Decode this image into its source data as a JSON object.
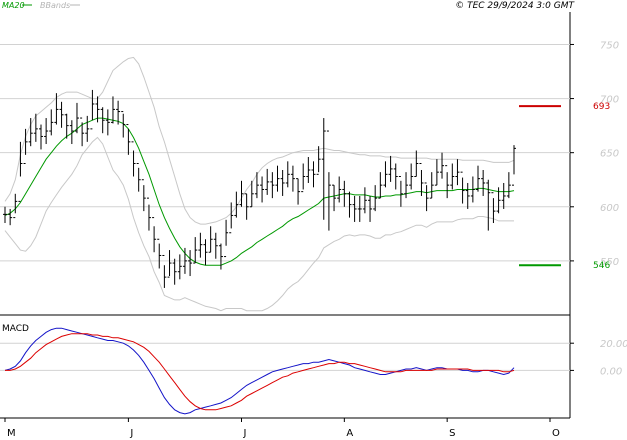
{
  "header": {
    "legend": [
      {
        "label": "MA20",
        "color": "#009900"
      },
      {
        "label": "BBands",
        "color": "#b4b4b4"
      }
    ],
    "copyright": "© TEC 29/9/2024 3:0 GMT"
  },
  "macd_panel": {
    "label": "MACD"
  },
  "colors": {
    "candle": "#000000",
    "ma20": "#009900",
    "bbands": "#c8c8c8",
    "grid": "#d2d2d2",
    "macd_line": "#1414c8",
    "signal_line": "#dc0000",
    "resistance": "#cc0000",
    "support": "#009900"
  },
  "chart_data": [
    {
      "type": "candlestick",
      "title": "",
      "x_ticks": [
        "M",
        "J",
        "J",
        "A",
        "S",
        "O"
      ],
      "y_ticks": [
        550,
        600,
        650,
        700,
        750
      ],
      "ylim": [
        500,
        780
      ],
      "grid": true,
      "ohlc_series": {
        "close": [
          593,
          590,
          605,
          640,
          660,
          668,
          672,
          665,
          670,
          678,
          690,
          685,
          675,
          670,
          682,
          668,
          672,
          695,
          690,
          680,
          678,
          690,
          688,
          676,
          660,
          640,
          625,
          608,
          590,
          570,
          555,
          535,
          548,
          540,
          545,
          550,
          548,
          560,
          565,
          558,
          570,
          564,
          554,
          576,
          592,
          602,
          612,
          600,
          612,
          620,
          616,
          623,
          620,
          626,
          622,
          630,
          626,
          614,
          628,
          634,
          630,
          644,
          670,
          620,
          608,
          616,
          612,
          602,
          598,
          598,
          606,
          598,
          608,
          620,
          630,
          635,
          628,
          612,
          620,
          628,
          640,
          622,
          608,
          620,
          632,
          638,
          620,
          628,
          632,
          615,
          610,
          616,
          626,
          622,
          613,
          596,
          606,
          610,
          620,
          654
        ],
        "high": [
          600,
          598,
          612,
          660,
          672,
          682,
          686,
          676,
          682,
          690,
          705,
          697,
          686,
          680,
          696,
          678,
          684,
          708,
          702,
          692,
          690,
          702,
          698,
          686,
          672,
          652,
          636,
          620,
          602,
          582,
          566,
          546,
          560,
          552,
          556,
          562,
          560,
          572,
          576,
          570,
          582,
          576,
          566,
          588,
          604,
          614,
          624,
          612,
          624,
          632,
          628,
          635,
          632,
          638,
          634,
          642,
          638,
          626,
          640,
          646,
          642,
          656,
          682,
          632,
          620,
          628,
          624,
          614,
          610,
          610,
          618,
          610,
          620,
          632,
          642,
          647,
          640,
          624,
          632,
          640,
          652,
          634,
          620,
          632,
          644,
          650,
          632,
          640,
          644,
          627,
          622,
          628,
          638,
          634,
          625,
          608,
          618,
          622,
          632,
          657
        ],
        "low": [
          585,
          583,
          594,
          628,
          648,
          656,
          660,
          653,
          658,
          666,
          676,
          673,
          663,
          658,
          668,
          656,
          660,
          680,
          678,
          668,
          666,
          677,
          676,
          664,
          648,
          628,
          614,
          596,
          578,
          558,
          543,
          525,
          536,
          528,
          533,
          538,
          536,
          548,
          553,
          546,
          558,
          552,
          542,
          564,
          580,
          590,
          600,
          588,
          600,
          608,
          604,
          611,
          608,
          614,
          610,
          618,
          614,
          602,
          616,
          622,
          618,
          632,
          588,
          578,
          596,
          604,
          600,
          590,
          586,
          586,
          594,
          586,
          596,
          608,
          618,
          623,
          616,
          600,
          608,
          616,
          628,
          610,
          596,
          608,
          620,
          626,
          608,
          616,
          620,
          603,
          598,
          604,
          614,
          610,
          578,
          585,
          594,
          598,
          608,
          630
        ]
      },
      "ma20": [
        592,
        594,
        598,
        604,
        612,
        620,
        628,
        636,
        644,
        650,
        656,
        661,
        665,
        668,
        672,
        676,
        678,
        680,
        682,
        682,
        681,
        680,
        679,
        677,
        672,
        664,
        654,
        642,
        630,
        616,
        602,
        590,
        580,
        571,
        563,
        557,
        552,
        549,
        547,
        546,
        546,
        546,
        546,
        548,
        550,
        553,
        557,
        560,
        563,
        567,
        570,
        573,
        576,
        579,
        582,
        586,
        589,
        591,
        594,
        597,
        600,
        603,
        608,
        609,
        610,
        611,
        612,
        612,
        611,
        611,
        611,
        610,
        609,
        609,
        610,
        610,
        611,
        611,
        612,
        613,
        614,
        614,
        613,
        614,
        615,
        615,
        615,
        615,
        616,
        616,
        616,
        616,
        617,
        617,
        616,
        615,
        614,
        614,
        614,
        615
      ],
      "bb_upper": [
        605,
        612,
        625,
        648,
        665,
        676,
        684,
        688,
        692,
        696,
        701,
        704,
        706,
        706,
        706,
        704,
        702,
        700,
        700,
        706,
        716,
        726,
        730,
        734,
        737,
        738,
        732,
        720,
        706,
        692,
        674,
        660,
        644,
        628,
        612,
        598,
        590,
        586,
        584,
        584,
        585,
        586,
        588,
        590,
        594,
        600,
        608,
        616,
        622,
        630,
        636,
        640,
        643,
        645,
        646,
        648,
        650,
        651,
        652,
        652,
        652,
        653,
        654,
        653,
        652,
        652,
        651,
        650,
        649,
        648,
        648,
        647,
        647,
        647,
        646,
        646,
        646,
        645,
        645,
        645,
        645,
        645,
        645,
        644,
        644,
        644,
        644,
        644,
        644,
        643,
        643,
        643,
        643,
        643,
        642,
        641,
        641,
        641,
        641,
        643
      ],
      "bb_lower": [
        578,
        572,
        566,
        560,
        559,
        564,
        572,
        584,
        596,
        604,
        611,
        618,
        624,
        630,
        638,
        648,
        654,
        660,
        664,
        658,
        646,
        634,
        628,
        620,
        607,
        590,
        576,
        564,
        554,
        540,
        530,
        518,
        516,
        514,
        514,
        516,
        514,
        512,
        510,
        508,
        507,
        506,
        504,
        506,
        506,
        506,
        506,
        504,
        504,
        504,
        504,
        506,
        509,
        513,
        518,
        524,
        528,
        531,
        536,
        542,
        548,
        553,
        562,
        565,
        568,
        570,
        573,
        574,
        573,
        574,
        574,
        573,
        571,
        571,
        574,
        574,
        576,
        577,
        579,
        581,
        583,
        583,
        581,
        584,
        586,
        586,
        586,
        586,
        588,
        589,
        589,
        589,
        591,
        591,
        590,
        589,
        587,
        587,
        587,
        587
      ],
      "markers": [
        {
          "label": "693",
          "value": 693,
          "color": "#cc0000"
        },
        {
          "label": "546",
          "value": 546,
          "color": "#009900"
        }
      ]
    },
    {
      "type": "line",
      "title": "MACD",
      "y_ticks": [
        0,
        20
      ],
      "ylim": [
        -35,
        40
      ],
      "grid": true,
      "series": [
        {
          "name": "MACD",
          "color": "#1414c8",
          "values": [
            0,
            1,
            3,
            7,
            13,
            18,
            22,
            25,
            28,
            30,
            31,
            31,
            30,
            29,
            28,
            27,
            26,
            25,
            24,
            23,
            22,
            22,
            21,
            20,
            18,
            15,
            11,
            6,
            0,
            -6,
            -13,
            -20,
            -25,
            -29,
            -31,
            -32,
            -31,
            -29,
            -28,
            -27,
            -26,
            -25,
            -24,
            -22,
            -20,
            -17,
            -14,
            -11,
            -9,
            -7,
            -5,
            -3,
            -1,
            0,
            1,
            2,
            3,
            4,
            5,
            5,
            6,
            6,
            7,
            8,
            7,
            6,
            5,
            4,
            2,
            1,
            0,
            -1,
            -2,
            -3,
            -3,
            -2,
            -1,
            0,
            1,
            1,
            2,
            1,
            0,
            1,
            2,
            2,
            1,
            1,
            1,
            0,
            0,
            -1,
            -1,
            0,
            0,
            -1,
            -2,
            -3,
            -2,
            2
          ]
        },
        {
          "name": "Signal",
          "color": "#dc0000",
          "values": [
            0,
            0,
            1,
            3,
            6,
            9,
            13,
            16,
            19,
            21,
            23,
            25,
            26,
            27,
            27,
            27,
            27,
            26,
            26,
            25,
            25,
            24,
            24,
            23,
            22,
            21,
            19,
            17,
            14,
            10,
            6,
            1,
            -4,
            -9,
            -14,
            -19,
            -23,
            -26,
            -28,
            -29,
            -29,
            -29,
            -28,
            -27,
            -26,
            -24,
            -22,
            -19,
            -17,
            -15,
            -13,
            -11,
            -9,
            -7,
            -5,
            -4,
            -2,
            -1,
            0,
            1,
            2,
            3,
            4,
            5,
            5,
            6,
            6,
            5,
            5,
            4,
            3,
            2,
            1,
            0,
            -1,
            -1,
            -1,
            -1,
            0,
            0,
            0,
            0,
            0,
            0,
            1,
            1,
            1,
            1,
            1,
            1,
            1,
            0,
            0,
            0,
            0,
            0,
            0,
            -1,
            -1,
            0
          ]
        }
      ]
    }
  ]
}
